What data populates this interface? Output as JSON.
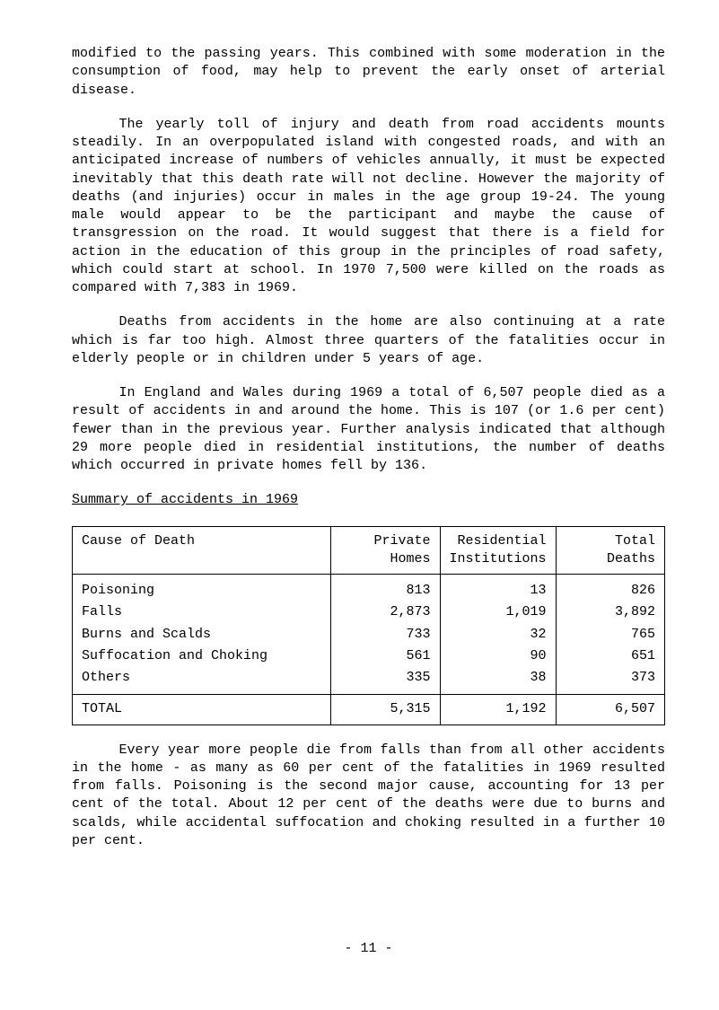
{
  "paragraphs": {
    "p1": "modified to the passing years.   This combined with some moderation in the consumption of food, may help to prevent the early onset of arterial disease.",
    "p2": "The yearly toll of injury and death from road accidents mounts steadily.   In an overpopulated island with congested roads, and with an anticipated increase of numbers of vehicles annually, it must be expected inevitably that this death rate will not decline.   However the majority of deaths (and injuries) occur in males in the age group 19-24.   The young male would appear to be the participant and maybe the cause of transgression on the road.   It would suggest that there is a field for action in the education of this group in the principles of road safety, which could start at school.   In 1970 7,500 were killed on the roads as compared with 7,383 in 1969.",
    "p3": "Deaths from accidents in the home are also continuing at a rate which is far too high.   Almost three quarters of the fatalities occur in elderly people or in children under 5 years of age.",
    "p4": "In England and Wales during 1969 a total of 6,507 people died as a result of accidents in and around the home.   This is 107 (or 1.6 per cent) fewer than in the previous year.   Further analysis indicated that although 29 more people died in residential institutions, the number of deaths which occurred in private homes fell by 136.",
    "summary_heading": "Summary of accidents in 1969",
    "p5": "Every year more people die from falls than from all other accidents in the home - as many as 60 per cent of the fatalities in 1969 resulted from falls.   Poisoning is the second major cause, accounting for 13 per cent of the total.   About 12 per cent of the deaths were due to burns and scalds, while accidental suffocation and choking resulted in a further 10 per cent."
  },
  "table": {
    "headers": {
      "cause": "Cause of Death",
      "private": "Private Homes",
      "residential": "Residential Institutions",
      "total": "Total Deaths"
    },
    "rows": [
      {
        "cause": "Poisoning",
        "private": "813",
        "residential": "13",
        "total": "826"
      },
      {
        "cause": "Falls",
        "private": "2,873",
        "residential": "1,019",
        "total": "3,892"
      },
      {
        "cause": "Burns and Scalds",
        "private": "733",
        "residential": "32",
        "total": "765"
      },
      {
        "cause": "Suffocation and Choking",
        "private": "561",
        "residential": "90",
        "total": "651"
      },
      {
        "cause": "Others",
        "private": "335",
        "residential": "38",
        "total": "373"
      }
    ],
    "total_row": {
      "cause": "TOTAL",
      "private": "5,315",
      "residential": "1,192",
      "total": "6,507"
    }
  },
  "page_number": "- 11 -"
}
